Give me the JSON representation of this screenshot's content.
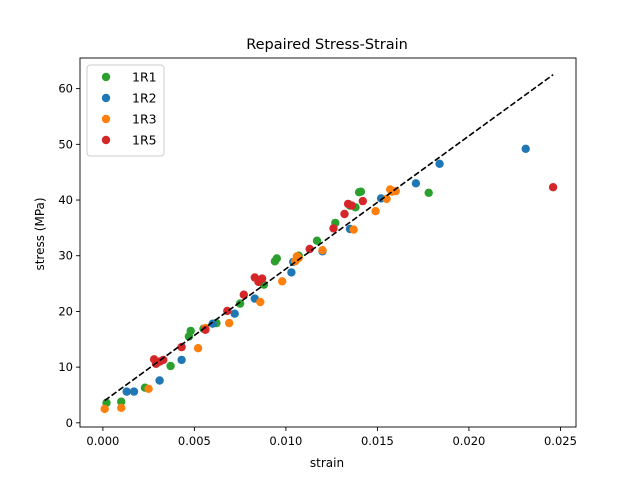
{
  "chart_data": {
    "type": "scatter",
    "title": "Repaired Stress-Strain",
    "xlabel": "strain",
    "ylabel": "stress (MPa)",
    "xlim": [
      -0.00125,
      0.02585
    ],
    "ylim": [
      -0.75,
      65.5
    ],
    "xticks": [
      0.0,
      0.005,
      0.01,
      0.015,
      0.02,
      0.025
    ],
    "xtick_labels": [
      "0.000",
      "0.005",
      "0.010",
      "0.015",
      "0.020",
      "0.025"
    ],
    "yticks": [
      0,
      10,
      20,
      30,
      40,
      50,
      60
    ],
    "ytick_labels": [
      "0",
      "10",
      "20",
      "30",
      "40",
      "50",
      "60"
    ],
    "grid": false,
    "legend_position": "top-left",
    "fit_line": {
      "style": "dashed",
      "color": "#000000",
      "x": [
        0.0001,
        0.0246
      ],
      "y": [
        4.0,
        62.5
      ]
    },
    "series": [
      {
        "name": "1R1",
        "color": "#2ca02c",
        "points": [
          [
            0.0002,
            3.6
          ],
          [
            0.001,
            3.8
          ],
          [
            0.0023,
            6.3
          ],
          [
            0.0037,
            10.2
          ],
          [
            0.0047,
            15.5
          ],
          [
            0.0048,
            16.5
          ],
          [
            0.0055,
            16.9
          ],
          [
            0.0062,
            17.9
          ],
          [
            0.0075,
            21.4
          ],
          [
            0.0088,
            24.8
          ],
          [
            0.0094,
            29.0
          ],
          [
            0.0095,
            29.5
          ],
          [
            0.0107,
            30.0
          ],
          [
            0.0117,
            32.7
          ],
          [
            0.0127,
            35.9
          ],
          [
            0.0135,
            39.0
          ],
          [
            0.0138,
            38.7
          ],
          [
            0.014,
            41.4
          ],
          [
            0.0141,
            41.5
          ],
          [
            0.0178,
            41.3
          ]
        ]
      },
      {
        "name": "1R2",
        "color": "#1f77b4",
        "points": [
          [
            0.0013,
            5.6
          ],
          [
            0.0017,
            5.6
          ],
          [
            0.0031,
            7.6
          ],
          [
            0.0043,
            11.3
          ],
          [
            0.006,
            17.8
          ],
          [
            0.0072,
            19.6
          ],
          [
            0.0083,
            22.3
          ],
          [
            0.0103,
            27.0
          ],
          [
            0.0104,
            28.9
          ],
          [
            0.012,
            30.8
          ],
          [
            0.0135,
            34.8
          ],
          [
            0.0152,
            40.3
          ],
          [
            0.0171,
            43.0
          ],
          [
            0.0184,
            46.5
          ],
          [
            0.0231,
            49.2
          ]
        ]
      },
      {
        "name": "1R3",
        "color": "#ff7f0e",
        "points": [
          [
            0.0001,
            2.5
          ],
          [
            0.001,
            2.7
          ],
          [
            0.0025,
            6.1
          ],
          [
            0.0052,
            13.4
          ],
          [
            0.0056,
            17.0
          ],
          [
            0.0069,
            17.9
          ],
          [
            0.0086,
            21.7
          ],
          [
            0.0098,
            25.4
          ],
          [
            0.0105,
            29.0
          ],
          [
            0.0106,
            29.9
          ],
          [
            0.0107,
            29.6
          ],
          [
            0.012,
            31.0
          ],
          [
            0.0137,
            34.7
          ],
          [
            0.0149,
            38.0
          ],
          [
            0.0155,
            40.2
          ],
          [
            0.0157,
            41.9
          ],
          [
            0.0158,
            41.5
          ],
          [
            0.016,
            41.6
          ]
        ]
      },
      {
        "name": "1R5",
        "color": "#d62728",
        "points": [
          [
            0.0028,
            11.4
          ],
          [
            0.0031,
            11.0
          ],
          [
            0.0029,
            10.6
          ],
          [
            0.0033,
            11.3
          ],
          [
            0.0043,
            13.6
          ],
          [
            0.0056,
            16.7
          ],
          [
            0.0068,
            20.1
          ],
          [
            0.0077,
            23.0
          ],
          [
            0.0083,
            26.1
          ],
          [
            0.0085,
            25.3
          ],
          [
            0.0087,
            25.9
          ],
          [
            0.0113,
            31.2
          ],
          [
            0.0126,
            34.9
          ],
          [
            0.0132,
            37.5
          ],
          [
            0.0134,
            39.3
          ],
          [
            0.0136,
            39.0
          ],
          [
            0.0142,
            39.8
          ],
          [
            0.0246,
            42.3
          ]
        ]
      }
    ]
  }
}
